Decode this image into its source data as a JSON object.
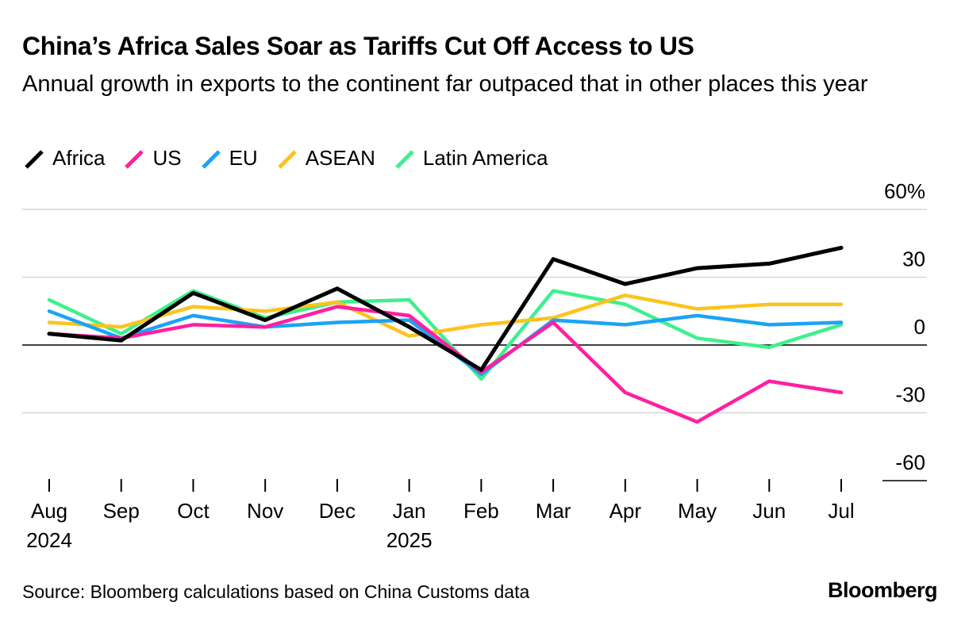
{
  "title": "China’s Africa Sales Soar as Tariffs Cut Off Access to US",
  "subtitle": "Annual growth in exports to the continent far outpaced that in other places this year",
  "source": "Source: Bloomberg calculations based on China Customs data",
  "brand": "Bloomberg",
  "chart_data": {
    "type": "line",
    "x": [
      "Aug",
      "Sep",
      "Oct",
      "Nov",
      "Dec",
      "Jan",
      "Feb",
      "Mar",
      "Apr",
      "May",
      "Jun",
      "Jul"
    ],
    "x_year_labels": [
      {
        "index": 0,
        "label": "2024"
      },
      {
        "index": 5,
        "label": "2025"
      }
    ],
    "ylim": [
      -60,
      60
    ],
    "yticks": [
      {
        "value": 60,
        "label": "60%"
      },
      {
        "value": 30,
        "label": "30"
      },
      {
        "value": 0,
        "label": "0"
      },
      {
        "value": -30,
        "label": "-30"
      },
      {
        "value": -60,
        "label": "-60"
      }
    ],
    "grid": true,
    "legend_position": "top-left",
    "series": [
      {
        "name": "Africa",
        "color": "#000000",
        "values": [
          5,
          2,
          23,
          11,
          25,
          8,
          -11,
          38,
          27,
          34,
          36,
          43
        ]
      },
      {
        "name": "US",
        "color": "#ff1fa0",
        "values": [
          5,
          3,
          9,
          8,
          17,
          13,
          -12,
          10,
          -21,
          -34,
          -16,
          -21
        ]
      },
      {
        "name": "EU",
        "color": "#1ba3f5",
        "values": [
          15,
          3,
          13,
          8,
          10,
          11,
          -13,
          11,
          9,
          13,
          9,
          10
        ]
      },
      {
        "name": "ASEAN",
        "color": "#fdc31d",
        "values": [
          10,
          8,
          17,
          15,
          19,
          4,
          9,
          12,
          22,
          16,
          18,
          18
        ]
      },
      {
        "name": "Latin America",
        "color": "#3ef08c",
        "values": [
          20,
          5,
          24,
          12,
          19,
          20,
          -15,
          24,
          18,
          3,
          -1,
          9
        ]
      }
    ]
  }
}
